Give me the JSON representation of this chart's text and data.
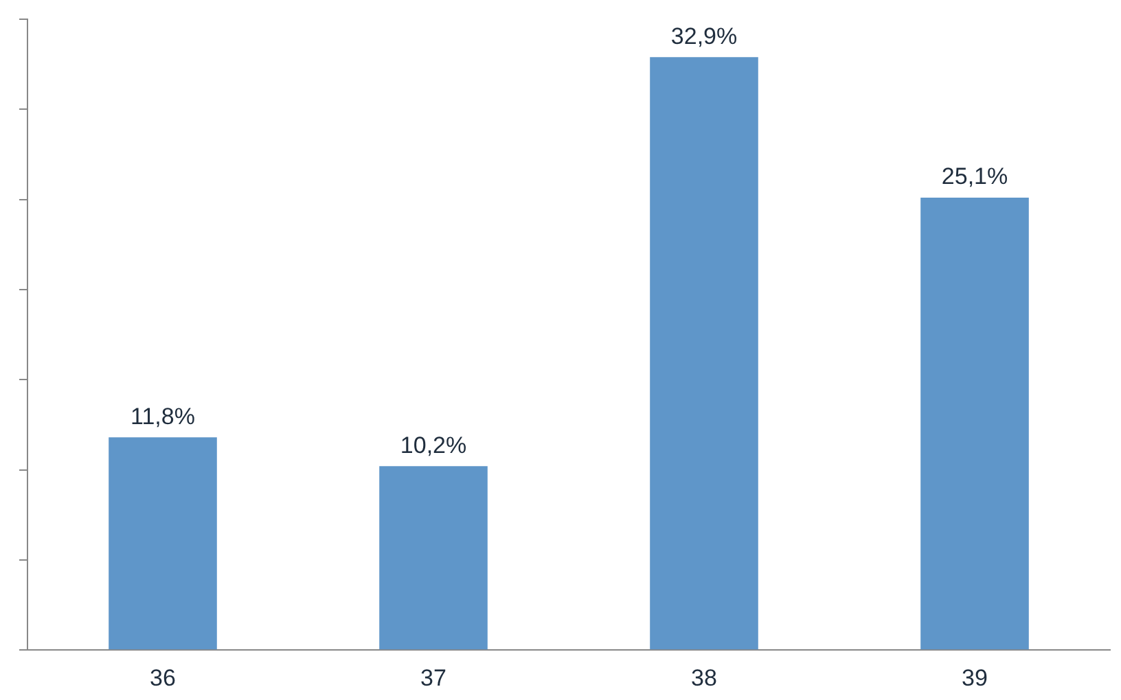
{
  "chart_data": {
    "type": "bar",
    "categories": [
      "36",
      "37",
      "38",
      "39"
    ],
    "values": [
      11.8,
      10.2,
      32.9,
      25.1
    ],
    "color": "#5f96c9",
    "value_labels": [
      "11,8%",
      "10,2%",
      "32,9%",
      "25,1%"
    ],
    "ylim": [
      0,
      35
    ],
    "yticks": [
      {
        "value": 0,
        "label": null
      },
      {
        "value": 5,
        "label": null
      },
      {
        "value": 10,
        "label": null
      },
      {
        "value": 15,
        "label": null
      },
      {
        "value": 20,
        "label": null
      },
      {
        "value": 25,
        "label": null
      },
      {
        "value": 30,
        "label": null
      },
      {
        "value": 35,
        "label": null
      }
    ],
    "tick_labels": "x",
    "grid": false,
    "legend": false
  }
}
